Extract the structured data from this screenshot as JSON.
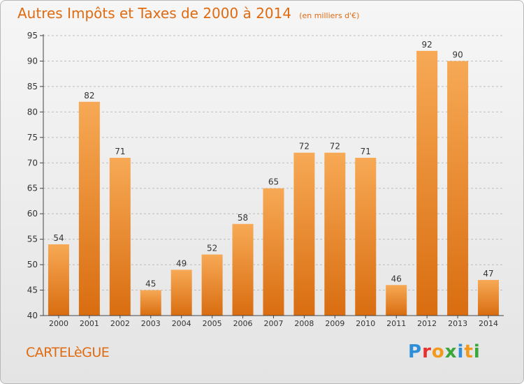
{
  "chart_data": {
    "type": "bar",
    "title": "Autres Impôts et Taxes de 2000 à 2014",
    "subtitle": "(en milliers d'€)",
    "categories": [
      "2000",
      "2001",
      "2002",
      "2003",
      "2004",
      "2005",
      "2006",
      "2007",
      "2008",
      "2009",
      "2010",
      "2011",
      "2012",
      "2013",
      "2014"
    ],
    "values": [
      54,
      82,
      71,
      45,
      49,
      52,
      58,
      65,
      72,
      72,
      71,
      46,
      92,
      90,
      47
    ],
    "ylim": [
      40,
      95
    ],
    "yticks": [
      40,
      45,
      50,
      55,
      60,
      65,
      70,
      75,
      80,
      85,
      90,
      95
    ],
    "grid": "horizontal-dashed",
    "bar_color_top": "#f7a955",
    "bar_color_bottom": "#d96d10"
  },
  "footer": {
    "commune": "CARTELèGUE",
    "brand_letters": [
      {
        "ch": "P",
        "color": "#2e8fd8"
      },
      {
        "ch": "r",
        "color": "#e8312f"
      },
      {
        "ch": "o",
        "color": "#f39a1e"
      },
      {
        "ch": "x",
        "color": "#3aa73a"
      },
      {
        "ch": "i",
        "color": "#2e8fd8"
      },
      {
        "ch": "t",
        "color": "#f39a1e"
      },
      {
        "ch": "i",
        "color": "#3aa73a"
      }
    ]
  },
  "colors": {
    "accent": "#e06a10",
    "axis": "#444444",
    "grid": "#bdbdbd"
  }
}
